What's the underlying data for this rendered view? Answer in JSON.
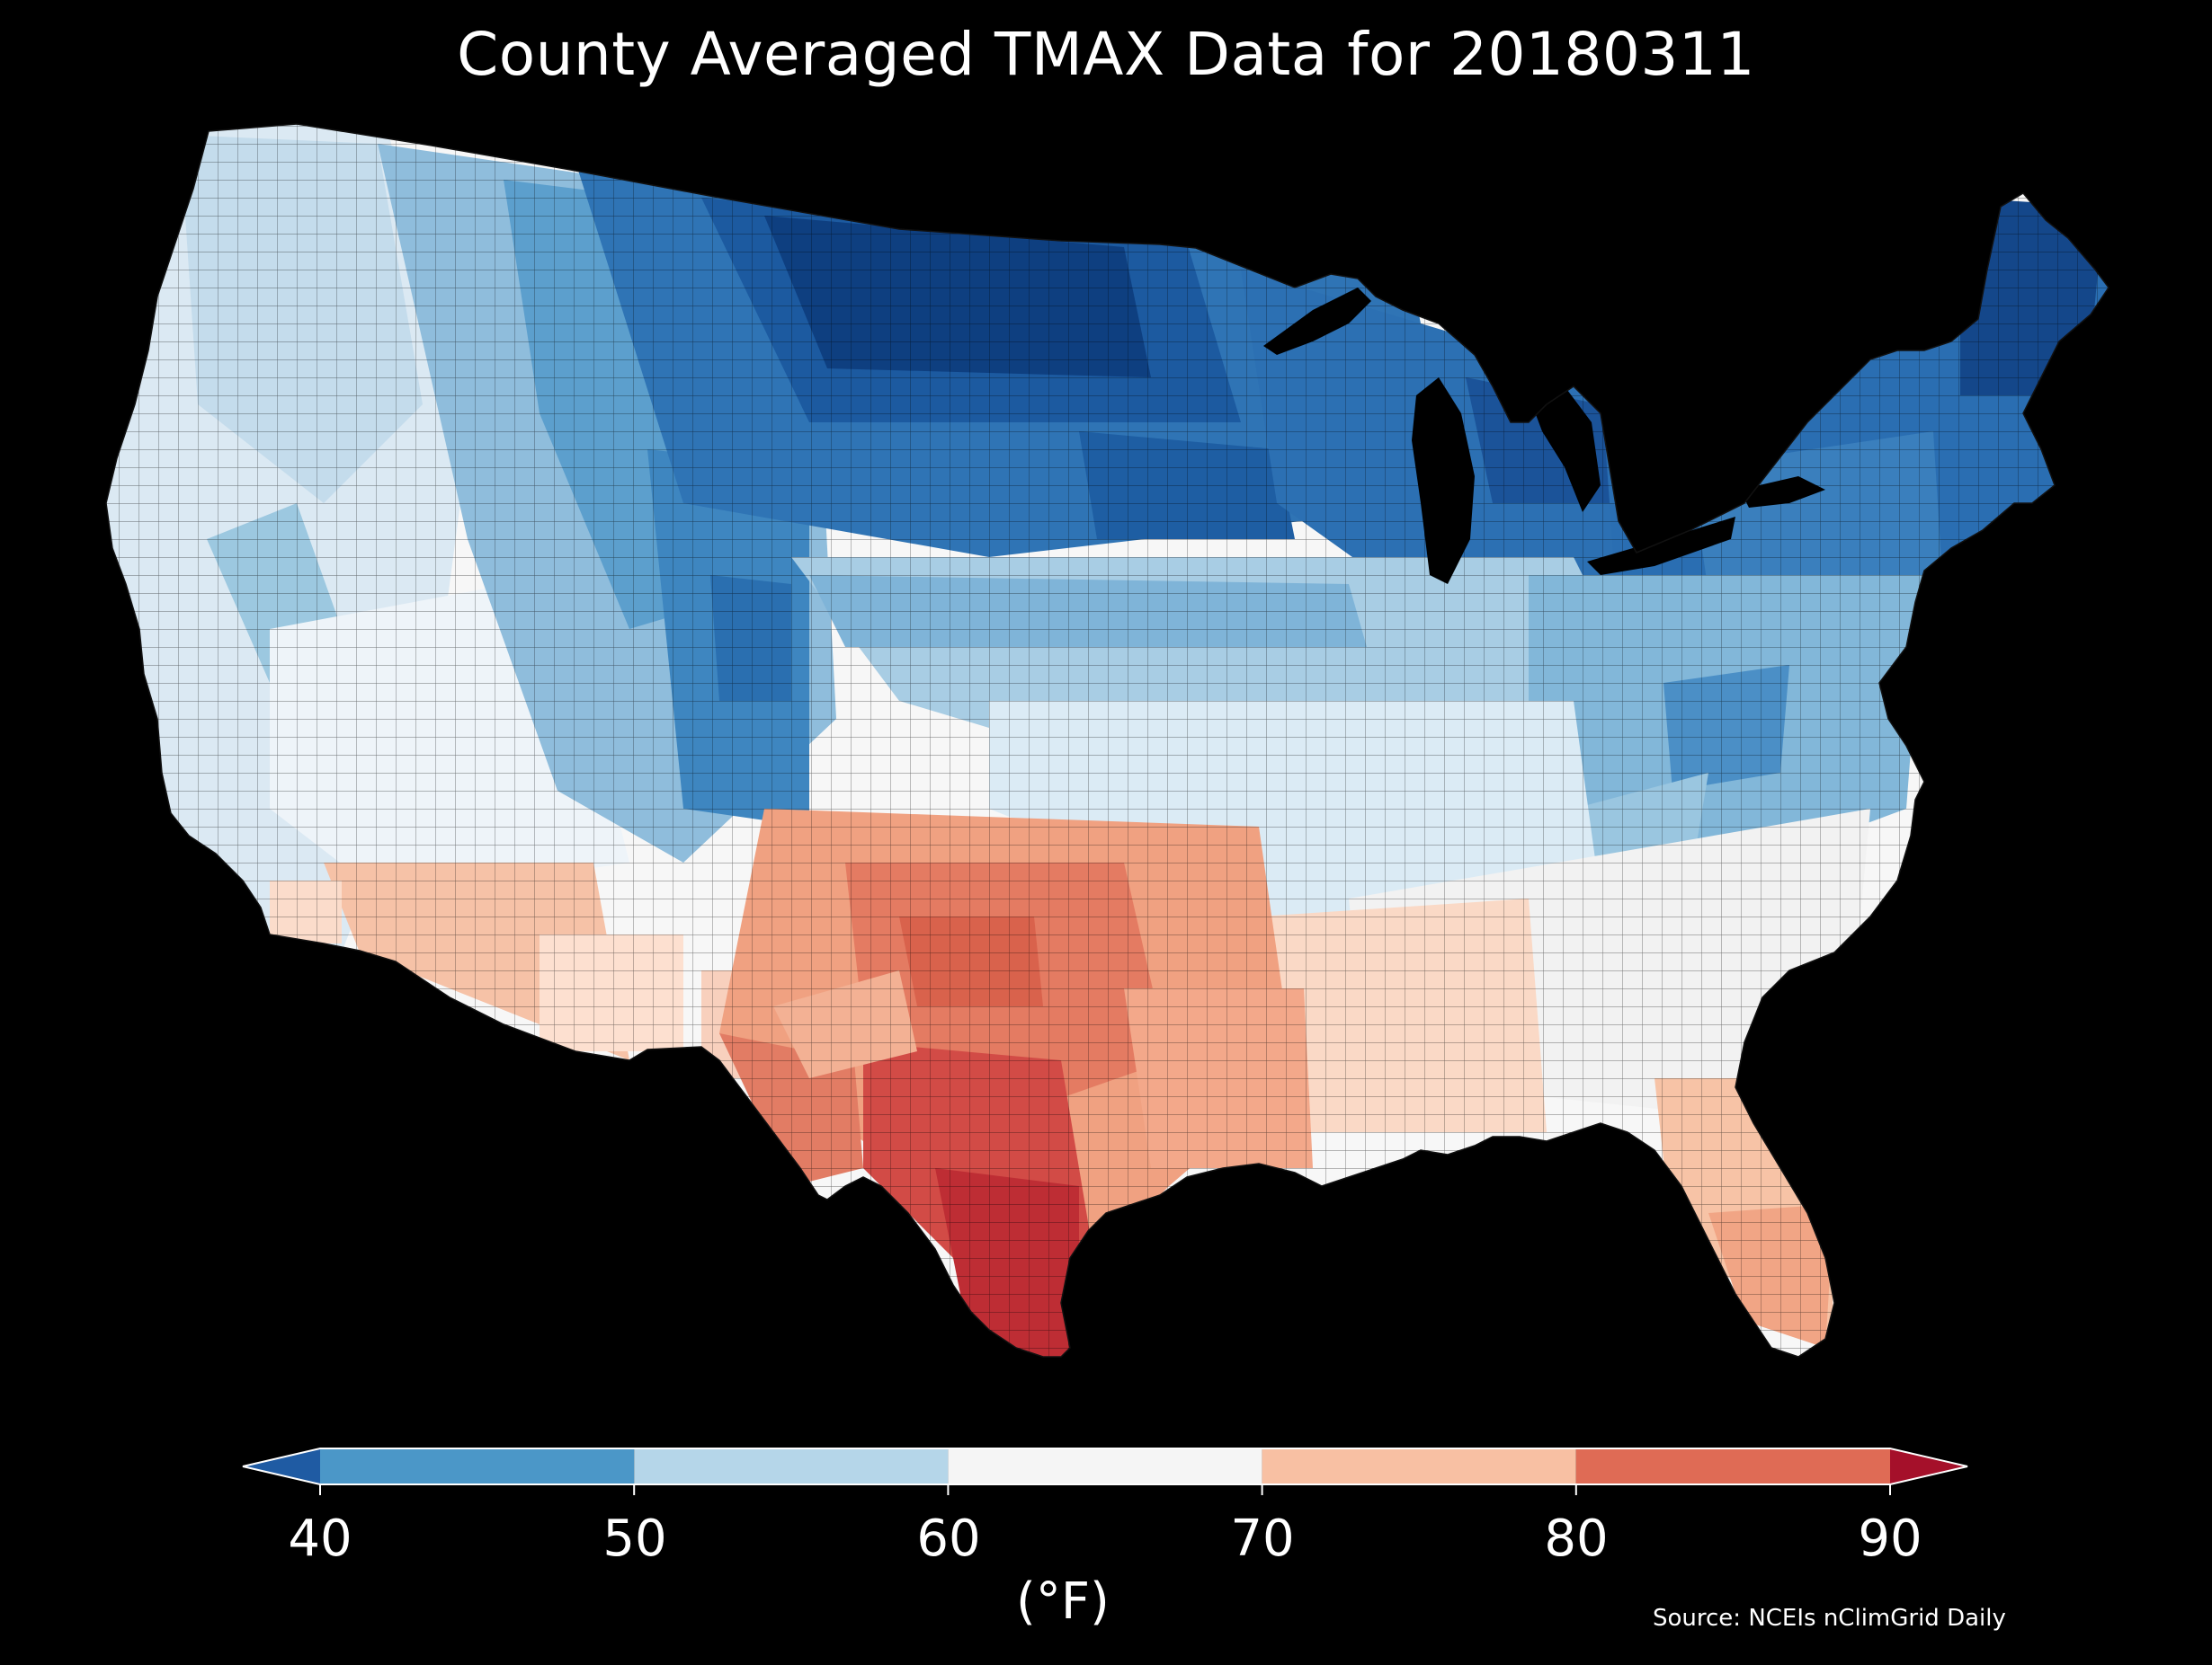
{
  "title": "County Averaged TMAX Data for 20180311",
  "colorbar": {
    "unit_label": "(°F)",
    "ticks": [
      "40",
      "50",
      "60",
      "70",
      "80",
      "90"
    ],
    "bins": [
      {
        "range": "<40",
        "color": "#1f5ba3"
      },
      {
        "range": "40-50",
        "color": "#4b97c8"
      },
      {
        "range": "50-60",
        "color": "#b5d6e9"
      },
      {
        "range": "60-70",
        "color": "#f5f5f5"
      },
      {
        "range": "70-80",
        "color": "#f8c0a3"
      },
      {
        "range": "80-90",
        "color": "#df6b55"
      },
      {
        "range": ">90",
        "color": "#a5102a"
      }
    ]
  },
  "source": "Source: NCEIs nClimGrid Daily",
  "colors": {
    "background": "#000000",
    "very_cold": "#08306b",
    "cold": "#2166ac",
    "cool": "#4393c3",
    "mild_cool": "#92c5de",
    "light_cool": "#d1e5f0",
    "neutral": "#f7f7f7",
    "light_warm": "#fddbc7",
    "warm": "#f4a582",
    "hot": "#d6604d",
    "very_hot": "#b2182b"
  }
}
